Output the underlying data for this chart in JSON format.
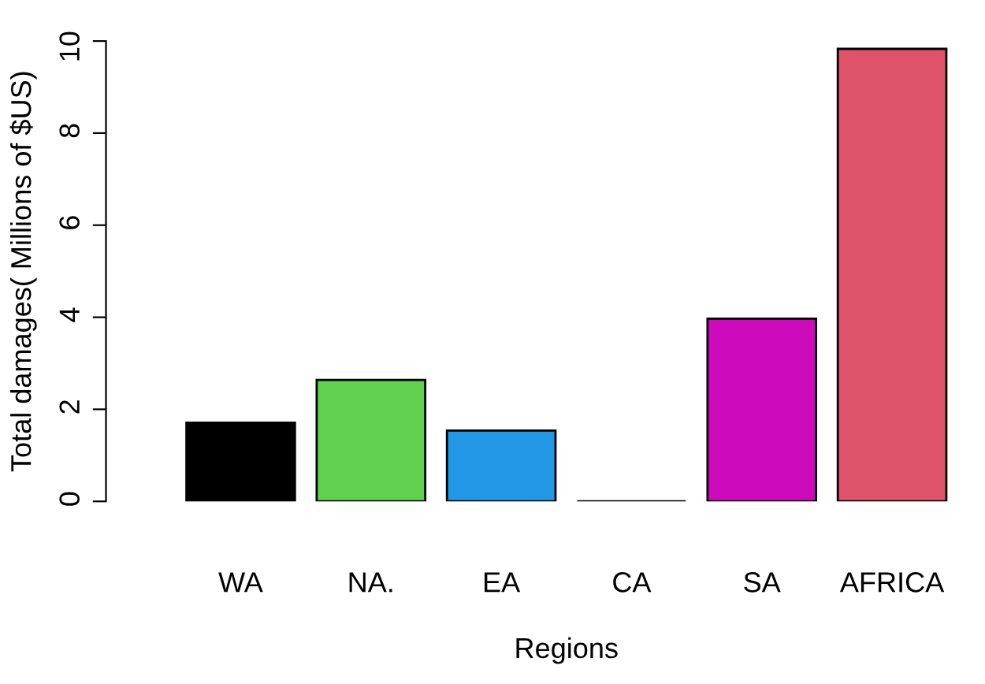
{
  "chart_data": {
    "type": "bar",
    "xlabel": "Regions",
    "ylabel": "Total damages( Millions of $US)",
    "categories": [
      "WA",
      "NA.",
      "EA",
      "CA",
      "SA",
      "AFRICA"
    ],
    "values": [
      1.71,
      2.64,
      1.54,
      0,
      3.97,
      9.83
    ],
    "colors": [
      "#000000",
      "#61d04f",
      "#2297e6",
      "#000000",
      "#cd0bbc",
      "#df536b"
    ],
    "ylim": [
      0,
      10
    ],
    "yticks": [
      0,
      2,
      4,
      6,
      8,
      10
    ],
    "grid": false,
    "legend": false
  }
}
